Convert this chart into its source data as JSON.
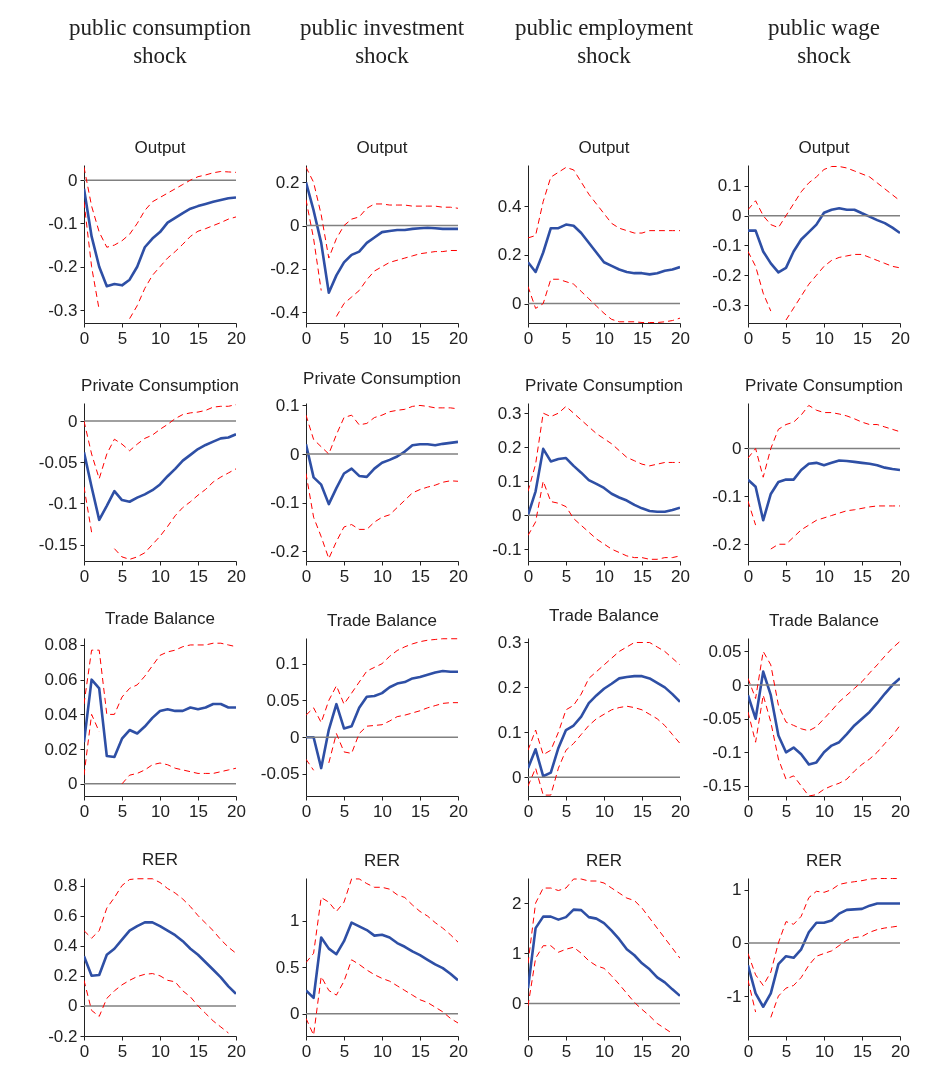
{
  "chart_data": [
    {
      "type": "line",
      "title": "Output",
      "annotations": [
        "public consumption shock"
      ],
      "x": [
        0,
        1,
        2,
        3,
        4,
        5,
        6,
        7,
        8,
        9,
        10,
        11,
        12,
        13,
        14,
        15,
        16,
        17,
        18,
        19,
        20
      ],
      "xlim": [
        0,
        20
      ],
      "xticks": [
        0,
        5,
        10,
        15,
        20
      ],
      "ylim": [
        -0.33,
        0.035
      ],
      "yticks": [
        -0.3,
        -0.2,
        -0.1,
        0
      ],
      "ref_lines": [
        {
          "axis": "y",
          "value": 0,
          "color": "#808080"
        }
      ],
      "series": [
        {
          "color": "#2e4fa5",
          "line_style": "solid",
          "values": [
            -0.02,
            -0.13,
            -0.2,
            -0.245,
            -0.24,
            -0.243,
            -0.23,
            -0.2,
            -0.155,
            -0.135,
            -0.12,
            -0.098,
            -0.087,
            -0.076,
            -0.066,
            -0.06,
            -0.055,
            -0.05,
            -0.046,
            -0.042,
            -0.04
          ]
        },
        {
          "color": "#ff0000",
          "line_style": "dashed",
          "values": [
            0.03,
            -0.06,
            -0.12,
            -0.155,
            -0.15,
            -0.14,
            -0.125,
            -0.1,
            -0.07,
            -0.05,
            -0.04,
            -0.03,
            -0.02,
            -0.01,
            0.0,
            0.008,
            0.012,
            0.017,
            0.02,
            0.019,
            0.018
          ]
        },
        {
          "color": "#ff0000",
          "line_style": "dashed",
          "values": [
            -0.05,
            -0.2,
            -0.3,
            null,
            null,
            null,
            -0.32,
            -0.29,
            -0.25,
            -0.22,
            -0.2,
            -0.18,
            -0.165,
            -0.148,
            -0.13,
            -0.118,
            -0.112,
            -0.105,
            -0.098,
            -0.09,
            -0.085
          ]
        }
      ]
    },
    {
      "type": "line",
      "title": "Output",
      "annotations": [
        "public investment shock"
      ],
      "x": [
        0,
        1,
        2,
        3,
        4,
        5,
        6,
        7,
        8,
        9,
        10,
        11,
        12,
        13,
        14,
        15,
        16,
        17,
        18,
        19,
        20
      ],
      "xlim": [
        0,
        20
      ],
      "xticks": [
        0,
        5,
        10,
        15,
        20
      ],
      "ylim": [
        -0.45,
        0.28
      ],
      "yticks": [
        -0.4,
        -0.2,
        0,
        0.2
      ],
      "ref_lines": [
        {
          "axis": "y",
          "value": 0,
          "color": "#808080"
        }
      ],
      "series": [
        {
          "color": "#2e4fa5",
          "line_style": "solid",
          "values": [
            0.2,
            0.07,
            -0.08,
            -0.31,
            -0.23,
            -0.17,
            -0.135,
            -0.12,
            -0.08,
            -0.055,
            -0.03,
            -0.025,
            -0.02,
            -0.02,
            -0.015,
            -0.012,
            -0.01,
            -0.012,
            -0.015,
            -0.015,
            -0.015
          ]
        },
        {
          "color": "#ff0000",
          "line_style": "dashed",
          "values": [
            0.27,
            0.2,
            0.05,
            -0.15,
            -0.06,
            0.0,
            0.03,
            0.04,
            0.08,
            0.1,
            0.1,
            0.095,
            0.095,
            0.095,
            0.09,
            0.09,
            0.09,
            0.09,
            0.085,
            0.085,
            0.08
          ]
        },
        {
          "color": "#ff0000",
          "line_style": "dashed",
          "values": [
            0.12,
            -0.06,
            -0.3,
            null,
            -0.42,
            -0.36,
            -0.33,
            -0.3,
            -0.25,
            -0.21,
            -0.19,
            -0.17,
            -0.16,
            -0.15,
            -0.14,
            -0.13,
            -0.125,
            -0.12,
            -0.12,
            -0.115,
            -0.115
          ]
        }
      ]
    },
    {
      "type": "line",
      "title": "Output",
      "annotations": [
        "public employment shock"
      ],
      "x": [
        0,
        1,
        2,
        3,
        4,
        5,
        6,
        7,
        8,
        9,
        10,
        11,
        12,
        13,
        14,
        15,
        16,
        17,
        18,
        19,
        20
      ],
      "xlim": [
        0,
        20
      ],
      "xticks": [
        0,
        5,
        10,
        15,
        20
      ],
      "ylim": [
        -0.08,
        0.57
      ],
      "yticks": [
        0,
        0.2,
        0.4
      ],
      "ref_lines": [
        {
          "axis": "y",
          "value": 0,
          "color": "#808080"
        }
      ],
      "series": [
        {
          "color": "#2e4fa5",
          "line_style": "solid",
          "values": [
            0.17,
            0.13,
            0.21,
            0.31,
            0.31,
            0.325,
            0.32,
            0.29,
            0.25,
            0.21,
            0.17,
            0.155,
            0.14,
            0.13,
            0.125,
            0.125,
            0.12,
            0.125,
            0.135,
            0.14,
            0.15
          ]
        },
        {
          "color": "#ff0000",
          "line_style": "dashed",
          "values": [
            0.27,
            0.28,
            0.42,
            0.52,
            0.54,
            0.56,
            0.55,
            0.5,
            0.45,
            0.41,
            0.37,
            0.33,
            0.31,
            0.3,
            0.29,
            0.29,
            0.3,
            0.3,
            0.3,
            0.3,
            0.3
          ]
        },
        {
          "color": "#ff0000",
          "line_style": "dashed",
          "values": [
            0.07,
            -0.02,
            0.0,
            0.1,
            0.1,
            0.09,
            0.08,
            0.05,
            0.02,
            -0.01,
            -0.04,
            -0.065,
            -0.075,
            -0.075,
            -0.075,
            -0.078,
            -0.078,
            -0.078,
            -0.075,
            -0.07,
            -0.06
          ]
        }
      ]
    },
    {
      "type": "line",
      "title": "Output",
      "annotations": [
        "public wage shock"
      ],
      "x": [
        0,
        1,
        2,
        3,
        4,
        5,
        6,
        7,
        8,
        9,
        10,
        11,
        12,
        13,
        14,
        15,
        16,
        17,
        18,
        19,
        20
      ],
      "xlim": [
        0,
        20
      ],
      "xticks": [
        0,
        5,
        10,
        15,
        20
      ],
      "ylim": [
        -0.36,
        0.17
      ],
      "yticks": [
        -0.3,
        -0.2,
        -0.1,
        0,
        0.1
      ],
      "ref_lines": [
        {
          "axis": "y",
          "value": 0,
          "color": "#808080"
        }
      ],
      "series": [
        {
          "color": "#2e4fa5",
          "line_style": "solid",
          "values": [
            -0.05,
            -0.05,
            -0.12,
            -0.16,
            -0.19,
            -0.175,
            -0.12,
            -0.08,
            -0.055,
            -0.03,
            0.01,
            0.02,
            0.025,
            0.02,
            0.02,
            0.008,
            -0.003,
            -0.015,
            -0.025,
            -0.04,
            -0.058
          ]
        },
        {
          "color": "#ff0000",
          "line_style": "dashed",
          "values": [
            0.02,
            0.05,
            0.0,
            -0.03,
            -0.04,
            0.0,
            0.04,
            0.08,
            0.11,
            0.13,
            0.155,
            0.165,
            0.165,
            0.16,
            0.15,
            0.14,
            0.13,
            0.11,
            0.09,
            0.07,
            0.05
          ]
        },
        {
          "color": "#ff0000",
          "line_style": "dashed",
          "values": [
            -0.12,
            -0.17,
            -0.26,
            -0.32,
            null,
            -0.35,
            -0.31,
            -0.27,
            -0.23,
            -0.2,
            -0.17,
            -0.15,
            -0.14,
            -0.135,
            -0.13,
            -0.13,
            -0.14,
            -0.15,
            -0.16,
            -0.17,
            -0.175
          ]
        }
      ]
    },
    {
      "type": "line",
      "title": "Private Consumption",
      "x": [
        0,
        1,
        2,
        3,
        4,
        5,
        6,
        7,
        8,
        9,
        10,
        11,
        12,
        13,
        14,
        15,
        16,
        17,
        18,
        19,
        20
      ],
      "xlim": [
        0,
        20
      ],
      "xticks": [
        0,
        5,
        10,
        15,
        20
      ],
      "ylim": [
        -0.17,
        0.022
      ],
      "yticks": [
        -0.15,
        -0.1,
        -0.05,
        0
      ],
      "ref_lines": [
        {
          "axis": "y",
          "value": 0,
          "color": "#808080"
        }
      ],
      "series": [
        {
          "color": "#2e4fa5",
          "line_style": "solid",
          "values": [
            -0.038,
            -0.08,
            -0.12,
            -0.103,
            -0.085,
            -0.096,
            -0.098,
            -0.093,
            -0.089,
            -0.084,
            -0.077,
            -0.067,
            -0.058,
            -0.048,
            -0.041,
            -0.034,
            -0.029,
            -0.025,
            -0.021,
            -0.02,
            -0.016
          ]
        },
        {
          "color": "#ff0000",
          "line_style": "dashed",
          "values": [
            0.0,
            -0.04,
            -0.07,
            -0.04,
            -0.022,
            -0.028,
            -0.036,
            -0.028,
            -0.021,
            -0.017,
            -0.01,
            -0.004,
            0.003,
            0.008,
            0.01,
            0.011,
            0.013,
            0.017,
            0.018,
            0.018,
            0.02
          ]
        },
        {
          "color": "#ff0000",
          "line_style": "dashed",
          "values": [
            -0.08,
            -0.135,
            null,
            null,
            -0.155,
            -0.165,
            -0.168,
            -0.165,
            -0.16,
            -0.15,
            -0.14,
            -0.128,
            -0.115,
            -0.105,
            -0.098,
            -0.09,
            -0.083,
            -0.074,
            -0.068,
            -0.063,
            -0.058
          ]
        }
      ]
    },
    {
      "type": "line",
      "title": "Private Consumption",
      "x": [
        0,
        1,
        2,
        3,
        4,
        5,
        6,
        7,
        8,
        9,
        10,
        11,
        12,
        13,
        14,
        15,
        16,
        17,
        18,
        19,
        20
      ],
      "xlim": [
        0,
        20
      ],
      "xticks": [
        0,
        5,
        10,
        15,
        20
      ],
      "ylim": [
        -0.22,
        0.105
      ],
      "yticks": [
        -0.2,
        -0.1,
        0,
        0.1
      ],
      "ref_lines": [
        {
          "axis": "y",
          "value": 0,
          "color": "#808080"
        }
      ],
      "series": [
        {
          "color": "#2e4fa5",
          "line_style": "solid",
          "values": [
            0.02,
            -0.048,
            -0.063,
            -0.103,
            -0.07,
            -0.04,
            -0.03,
            -0.045,
            -0.047,
            -0.03,
            -0.018,
            -0.012,
            -0.005,
            0.005,
            0.018,
            0.02,
            0.02,
            0.018,
            0.021,
            0.023,
            0.025
          ]
        },
        {
          "color": "#ff0000",
          "line_style": "dashed",
          "values": [
            0.08,
            0.03,
            0.015,
            0.0,
            0.04,
            0.075,
            0.08,
            0.06,
            0.063,
            0.075,
            0.08,
            0.087,
            0.09,
            0.092,
            0.098,
            0.1,
            0.098,
            0.095,
            0.095,
            0.095,
            0.093
          ]
        },
        {
          "color": "#ff0000",
          "line_style": "dashed",
          "values": [
            -0.04,
            -0.13,
            -0.17,
            -0.215,
            -0.18,
            -0.15,
            -0.145,
            -0.155,
            -0.155,
            -0.14,
            -0.13,
            -0.125,
            -0.11,
            -0.095,
            -0.08,
            -0.073,
            -0.068,
            -0.064,
            -0.058,
            -0.055,
            -0.056
          ]
        }
      ]
    },
    {
      "type": "line",
      "title": "Private Consumption",
      "x": [
        0,
        1,
        2,
        3,
        4,
        5,
        6,
        7,
        8,
        9,
        10,
        11,
        12,
        13,
        14,
        15,
        16,
        17,
        18,
        19,
        20
      ],
      "xlim": [
        0,
        20
      ],
      "xticks": [
        0,
        5,
        10,
        15,
        20
      ],
      "ylim": [
        -0.135,
        0.33
      ],
      "yticks": [
        -0.1,
        0,
        0.1,
        0.2,
        0.3
      ],
      "ref_lines": [
        {
          "axis": "y",
          "value": 0,
          "color": "#808080"
        }
      ],
      "series": [
        {
          "color": "#2e4fa5",
          "line_style": "solid",
          "values": [
            0.0,
            0.07,
            0.195,
            0.158,
            0.165,
            0.168,
            0.145,
            0.125,
            0.103,
            0.092,
            0.08,
            0.063,
            0.052,
            0.043,
            0.03,
            0.02,
            0.012,
            0.01,
            0.01,
            0.015,
            0.022
          ]
        },
        {
          "color": "#ff0000",
          "line_style": "dashed",
          "values": [
            0.07,
            0.15,
            0.3,
            0.29,
            0.3,
            0.32,
            0.3,
            0.28,
            0.26,
            0.24,
            0.225,
            0.21,
            0.19,
            0.17,
            0.16,
            0.15,
            0.145,
            0.15,
            0.155,
            0.155,
            0.155
          ]
        },
        {
          "color": "#ff0000",
          "line_style": "dashed",
          "values": [
            -0.06,
            -0.02,
            0.1,
            0.04,
            0.035,
            0.025,
            -0.01,
            -0.03,
            -0.05,
            -0.07,
            -0.085,
            -0.1,
            -0.11,
            -0.12,
            -0.125,
            -0.125,
            -0.13,
            -0.13,
            -0.125,
            -0.125,
            -0.12
          ]
        }
      ]
    },
    {
      "type": "line",
      "title": "Private Consumption",
      "x": [
        0,
        1,
        2,
        3,
        4,
        5,
        6,
        7,
        8,
        9,
        10,
        11,
        12,
        13,
        14,
        15,
        16,
        17,
        18,
        19,
        20
      ],
      "xlim": [
        0,
        20
      ],
      "xticks": [
        0,
        5,
        10,
        15,
        20
      ],
      "ylim": [
        -0.235,
        0.095
      ],
      "yticks": [
        -0.2,
        -0.1,
        0
      ],
      "ref_lines": [
        {
          "axis": "y",
          "value": 0,
          "color": "#808080"
        }
      ],
      "series": [
        {
          "color": "#2e4fa5",
          "line_style": "solid",
          "values": [
            -0.065,
            -0.08,
            -0.15,
            -0.095,
            -0.07,
            -0.065,
            -0.065,
            -0.045,
            -0.032,
            -0.03,
            -0.035,
            -0.03,
            -0.025,
            -0.026,
            -0.028,
            -0.03,
            -0.032,
            -0.035,
            -0.04,
            -0.043,
            -0.045
          ]
        },
        {
          "color": "#ff0000",
          "line_style": "dashed",
          "values": [
            -0.02,
            0.0,
            -0.06,
            0.0,
            0.04,
            0.05,
            0.055,
            0.07,
            0.09,
            0.08,
            0.075,
            0.075,
            0.072,
            0.068,
            0.062,
            0.055,
            0.05,
            0.05,
            0.045,
            0.04,
            0.035
          ]
        },
        {
          "color": "#ff0000",
          "line_style": "dashed",
          "values": [
            -0.11,
            -0.16,
            null,
            -0.21,
            -0.2,
            -0.2,
            -0.185,
            -0.17,
            -0.16,
            -0.15,
            -0.145,
            -0.14,
            -0.135,
            -0.13,
            -0.128,
            -0.125,
            -0.122,
            -0.12,
            -0.12,
            -0.12,
            -0.12
          ]
        }
      ]
    },
    {
      "type": "line",
      "title": "Trade Balance",
      "x": [
        0,
        1,
        2,
        3,
        4,
        5,
        6,
        7,
        8,
        9,
        10,
        11,
        12,
        13,
        14,
        15,
        16,
        17,
        18,
        19,
        20
      ],
      "xlim": [
        0,
        20
      ],
      "xticks": [
        0,
        5,
        10,
        15,
        20
      ],
      "ylim": [
        -0.007,
        0.084
      ],
      "yticks": [
        0,
        0.02,
        0.04,
        0.06,
        0.08
      ],
      "ref_lines": [
        {
          "axis": "y",
          "value": 0,
          "color": "#808080"
        }
      ],
      "series": [
        {
          "color": "#2e4fa5",
          "line_style": "solid",
          "values": [
            0.024,
            0.06,
            0.055,
            0.016,
            0.0155,
            0.026,
            0.031,
            0.029,
            0.033,
            0.038,
            0.042,
            0.043,
            0.042,
            0.042,
            0.044,
            0.043,
            0.044,
            0.046,
            0.046,
            0.044,
            0.044
          ]
        },
        {
          "color": "#ff0000",
          "line_style": "dashed",
          "values": [
            0.046,
            0.077,
            0.077,
            0.04,
            0.04,
            0.05,
            0.055,
            0.057,
            0.062,
            0.068,
            0.074,
            0.076,
            0.077,
            0.079,
            0.08,
            0.08,
            0.08,
            0.081,
            0.081,
            0.08,
            0.079
          ]
        },
        {
          "color": "#ff0000",
          "line_style": "dashed",
          "values": [
            0.005,
            0.04,
            0.03,
            null,
            null,
            0.0,
            0.005,
            0.006,
            0.008,
            0.011,
            0.012,
            0.011,
            0.009,
            0.008,
            0.007,
            0.006,
            0.006,
            0.006,
            0.007,
            0.008,
            0.009
          ]
        }
      ]
    },
    {
      "type": "line",
      "title": "Trade Balance",
      "x": [
        0,
        1,
        2,
        3,
        4,
        5,
        6,
        7,
        8,
        9,
        10,
        11,
        12,
        13,
        14,
        15,
        16,
        17,
        18,
        19,
        20
      ],
      "xlim": [
        0,
        20
      ],
      "xticks": [
        0,
        5,
        10,
        15,
        20
      ],
      "ylim": [
        -0.08,
        0.135
      ],
      "yticks": [
        -0.05,
        0,
        0.05,
        0.1
      ],
      "ref_lines": [
        {
          "axis": "y",
          "value": 0,
          "color": "#808080"
        }
      ],
      "series": [
        {
          "color": "#2e4fa5",
          "line_style": "solid",
          "values": [
            0.0,
            0.0,
            -0.042,
            0.01,
            0.045,
            0.012,
            0.015,
            0.04,
            0.055,
            0.056,
            0.06,
            0.068,
            0.073,
            0.075,
            0.08,
            0.082,
            0.085,
            0.088,
            0.09,
            0.089,
            0.089
          ]
        },
        {
          "color": "#ff0000",
          "line_style": "dashed",
          "values": [
            0.03,
            0.04,
            0.02,
            0.05,
            0.07,
            0.045,
            0.06,
            0.075,
            0.09,
            0.095,
            0.1,
            0.11,
            0.118,
            0.123,
            0.127,
            0.13,
            0.132,
            0.133,
            0.134,
            0.134,
            0.134
          ]
        },
        {
          "color": "#ff0000",
          "line_style": "dashed",
          "values": [
            -0.03,
            -0.045,
            null,
            -0.035,
            0.005,
            -0.02,
            -0.022,
            0.005,
            0.015,
            0.016,
            0.017,
            0.022,
            0.028,
            0.03,
            0.033,
            0.036,
            0.04,
            0.043,
            0.046,
            0.047,
            0.047
          ]
        }
      ]
    },
    {
      "type": "line",
      "title": "Trade Balance",
      "x": [
        0,
        1,
        2,
        3,
        4,
        5,
        6,
        7,
        8,
        9,
        10,
        11,
        12,
        13,
        14,
        15,
        16,
        17,
        18,
        19,
        20
      ],
      "xlim": [
        0,
        20
      ],
      "xticks": [
        0,
        5,
        10,
        15,
        20
      ],
      "ylim": [
        -0.042,
        0.31
      ],
      "yticks": [
        0,
        0.1,
        0.2,
        0.3
      ],
      "ref_lines": [
        {
          "axis": "y",
          "value": 0,
          "color": "#808080"
        }
      ],
      "series": [
        {
          "color": "#2e4fa5",
          "line_style": "solid",
          "values": [
            0.02,
            0.062,
            0.002,
            0.01,
            0.065,
            0.105,
            0.115,
            0.135,
            0.165,
            0.182,
            0.197,
            0.208,
            0.22,
            0.223,
            0.225,
            0.225,
            0.22,
            0.21,
            0.2,
            0.185,
            0.168
          ]
        },
        {
          "color": "#ff0000",
          "line_style": "dashed",
          "values": [
            0.06,
            0.105,
            0.05,
            0.06,
            0.1,
            0.15,
            0.16,
            0.185,
            0.22,
            0.235,
            0.25,
            0.265,
            0.28,
            0.29,
            0.3,
            0.3,
            0.3,
            0.29,
            0.28,
            0.265,
            0.25
          ]
        },
        {
          "color": "#ff0000",
          "line_style": "dashed",
          "values": [
            -0.02,
            0.02,
            -0.04,
            -0.04,
            0.02,
            0.06,
            0.075,
            0.095,
            0.115,
            0.13,
            0.14,
            0.15,
            0.155,
            0.158,
            0.155,
            0.15,
            0.14,
            0.13,
            0.115,
            0.095,
            0.075
          ]
        }
      ]
    },
    {
      "type": "line",
      "title": "Trade Balance",
      "x": [
        0,
        1,
        2,
        3,
        4,
        5,
        6,
        7,
        8,
        9,
        10,
        11,
        12,
        13,
        14,
        15,
        16,
        17,
        18,
        19,
        20
      ],
      "xlim": [
        0,
        20
      ],
      "xticks": [
        0,
        5,
        10,
        15,
        20
      ],
      "ylim": [
        -0.165,
        0.07
      ],
      "yticks": [
        -0.15,
        -0.1,
        -0.05,
        0,
        0.05
      ],
      "ref_lines": [
        {
          "axis": "y",
          "value": 0,
          "color": "#808080"
        }
      ],
      "series": [
        {
          "color": "#2e4fa5",
          "line_style": "solid",
          "values": [
            -0.015,
            -0.05,
            0.02,
            -0.015,
            -0.075,
            -0.1,
            -0.093,
            -0.103,
            -0.118,
            -0.115,
            -0.1,
            -0.09,
            -0.085,
            -0.073,
            -0.06,
            -0.05,
            -0.04,
            -0.027,
            -0.013,
            0.0,
            0.01
          ]
        },
        {
          "color": "#ff0000",
          "line_style": "dashed",
          "values": [
            0.01,
            -0.02,
            0.05,
            0.03,
            -0.03,
            -0.055,
            -0.06,
            -0.065,
            -0.068,
            -0.062,
            -0.05,
            -0.038,
            -0.025,
            -0.015,
            -0.005,
            0.005,
            0.018,
            0.03,
            0.043,
            0.055,
            0.065
          ]
        },
        {
          "color": "#ff0000",
          "line_style": "dashed",
          "values": [
            -0.04,
            -0.085,
            -0.015,
            -0.055,
            -0.11,
            -0.14,
            -0.135,
            -0.15,
            -0.165,
            -0.163,
            -0.155,
            -0.15,
            -0.146,
            -0.14,
            -0.128,
            -0.118,
            -0.11,
            -0.1,
            -0.087,
            -0.075,
            -0.06
          ]
        }
      ]
    },
    {
      "type": "line",
      "title": "RER",
      "x": [
        0,
        1,
        2,
        3,
        4,
        5,
        6,
        7,
        8,
        9,
        10,
        11,
        12,
        13,
        14,
        15,
        16,
        17,
        18,
        19,
        20
      ],
      "xlim": [
        0,
        20
      ],
      "xticks": [
        0,
        5,
        10,
        15,
        20
      ],
      "ylim": [
        -0.2,
        0.85
      ],
      "yticks": [
        -0.2,
        0,
        0.2,
        0.4,
        0.6,
        0.8
      ],
      "ref_lines": [
        {
          "axis": "y",
          "value": 0,
          "color": "#808080"
        }
      ],
      "series": [
        {
          "color": "#2e4fa5",
          "line_style": "solid",
          "values": [
            0.33,
            0.2,
            0.205,
            0.34,
            0.38,
            0.44,
            0.5,
            0.53,
            0.555,
            0.555,
            0.53,
            0.5,
            0.47,
            0.43,
            0.38,
            0.34,
            0.29,
            0.24,
            0.19,
            0.13,
            0.08
          ]
        },
        {
          "color": "#ff0000",
          "line_style": "dashed",
          "values": [
            0.5,
            0.45,
            0.5,
            0.65,
            0.72,
            0.8,
            0.84,
            0.845,
            0.845,
            0.845,
            0.82,
            0.78,
            0.75,
            0.71,
            0.66,
            0.6,
            0.55,
            0.5,
            0.44,
            0.39,
            0.35
          ]
        },
        {
          "color": "#ff0000",
          "line_style": "dashed",
          "values": [
            0.17,
            -0.03,
            -0.07,
            0.05,
            0.1,
            0.14,
            0.17,
            0.195,
            0.21,
            0.215,
            0.2,
            0.17,
            0.16,
            0.1,
            0.06,
            0.0,
            -0.05,
            -0.1,
            -0.14,
            -0.18,
            null
          ]
        }
      ]
    },
    {
      "type": "line",
      "title": "RER",
      "x": [
        0,
        1,
        2,
        3,
        4,
        5,
        6,
        7,
        8,
        9,
        10,
        11,
        12,
        13,
        14,
        15,
        16,
        17,
        18,
        19,
        20
      ],
      "xlim": [
        0,
        20
      ],
      "xticks": [
        0,
        5,
        10,
        15,
        20
      ],
      "ylim": [
        -0.24,
        1.46
      ],
      "yticks": [
        0,
        0.5,
        1
      ],
      "ref_lines": [
        {
          "axis": "y",
          "value": 0,
          "color": "#808080"
        }
      ],
      "series": [
        {
          "color": "#2e4fa5",
          "line_style": "solid",
          "values": [
            0.25,
            0.17,
            0.82,
            0.7,
            0.64,
            0.78,
            0.98,
            0.94,
            0.9,
            0.84,
            0.85,
            0.82,
            0.76,
            0.72,
            0.67,
            0.63,
            0.58,
            0.53,
            0.49,
            0.43,
            0.36
          ]
        },
        {
          "color": "#ff0000",
          "line_style": "dashed",
          "values": [
            0.55,
            0.65,
            1.25,
            1.2,
            1.1,
            1.2,
            1.45,
            1.45,
            1.4,
            1.36,
            1.36,
            1.34,
            1.28,
            1.25,
            1.17,
            1.1,
            1.05,
            0.98,
            0.92,
            0.85,
            0.77
          ]
        },
        {
          "color": "#ff0000",
          "line_style": "dashed",
          "values": [
            -0.05,
            -0.23,
            0.4,
            0.25,
            0.2,
            0.35,
            0.58,
            0.53,
            0.47,
            0.42,
            0.38,
            0.35,
            0.3,
            0.25,
            0.2,
            0.15,
            0.12,
            0.07,
            0.02,
            -0.05,
            -0.1
          ]
        }
      ]
    },
    {
      "type": "line",
      "title": "RER",
      "x": [
        0,
        1,
        2,
        3,
        4,
        5,
        6,
        7,
        8,
        9,
        10,
        11,
        12,
        13,
        14,
        15,
        16,
        17,
        18,
        19,
        20
      ],
      "xlim": [
        0,
        20
      ],
      "xticks": [
        0,
        5,
        10,
        15,
        20
      ],
      "ylim": [
        -0.65,
        2.5
      ],
      "yticks": [
        0,
        1,
        2
      ],
      "ref_lines": [
        {
          "axis": "y",
          "value": 0,
          "color": "#808080"
        }
      ],
      "series": [
        {
          "color": "#2e4fa5",
          "line_style": "solid",
          "values": [
            0.3,
            1.5,
            1.73,
            1.73,
            1.67,
            1.72,
            1.87,
            1.86,
            1.72,
            1.69,
            1.6,
            1.45,
            1.28,
            1.08,
            0.96,
            0.8,
            0.68,
            0.52,
            0.42,
            0.28,
            0.15
          ]
        },
        {
          "color": "#ff0000",
          "line_style": "dashed",
          "values": [
            0.8,
            2.0,
            2.3,
            2.3,
            2.25,
            2.3,
            2.48,
            2.48,
            2.44,
            2.44,
            2.4,
            2.3,
            2.2,
            2.1,
            2.05,
            1.9,
            1.7,
            1.5,
            1.3,
            1.1,
            0.9
          ]
        },
        {
          "color": "#ff0000",
          "line_style": "dashed",
          "values": [
            -0.05,
            0.9,
            1.15,
            1.15,
            1.02,
            1.08,
            1.12,
            1.0,
            0.85,
            0.75,
            0.7,
            0.55,
            0.38,
            0.2,
            0.02,
            -0.12,
            -0.25,
            -0.4,
            -0.5,
            -0.6,
            null
          ]
        }
      ]
    },
    {
      "type": "line",
      "title": "RER",
      "x": [
        0,
        1,
        2,
        3,
        4,
        5,
        6,
        7,
        8,
        9,
        10,
        11,
        12,
        13,
        14,
        15,
        16,
        17,
        18,
        19,
        20
      ],
      "xlim": [
        0,
        20
      ],
      "xticks": [
        0,
        5,
        10,
        15,
        20
      ],
      "ylim": [
        -1.75,
        1.22
      ],
      "yticks": [
        -1,
        0,
        1
      ],
      "ref_lines": [
        {
          "axis": "y",
          "value": 0,
          "color": "#808080"
        }
      ],
      "series": [
        {
          "color": "#2e4fa5",
          "line_style": "solid",
          "values": [
            -0.42,
            -0.95,
            -1.2,
            -0.95,
            -0.4,
            -0.25,
            -0.28,
            -0.12,
            0.2,
            0.38,
            0.38,
            0.42,
            0.55,
            0.62,
            0.63,
            0.64,
            0.7,
            0.74,
            0.74,
            0.74,
            0.74
          ]
        },
        {
          "color": "#ff0000",
          "line_style": "dashed",
          "values": [
            -0.2,
            -0.6,
            -0.8,
            -0.55,
            0.0,
            0.4,
            0.35,
            0.5,
            0.85,
            0.97,
            0.95,
            1.0,
            1.1,
            1.13,
            1.15,
            1.17,
            1.2,
            1.21,
            1.21,
            1.21,
            1.21
          ]
        },
        {
          "color": "#ff0000",
          "line_style": "dashed",
          "values": [
            -0.7,
            -1.3,
            null,
            -1.4,
            -1.0,
            -0.85,
            -0.8,
            -0.65,
            -0.42,
            -0.25,
            -0.2,
            -0.15,
            -0.05,
            0.05,
            0.1,
            0.12,
            0.2,
            0.25,
            0.28,
            0.3,
            0.32
          ]
        }
      ]
    }
  ]
}
